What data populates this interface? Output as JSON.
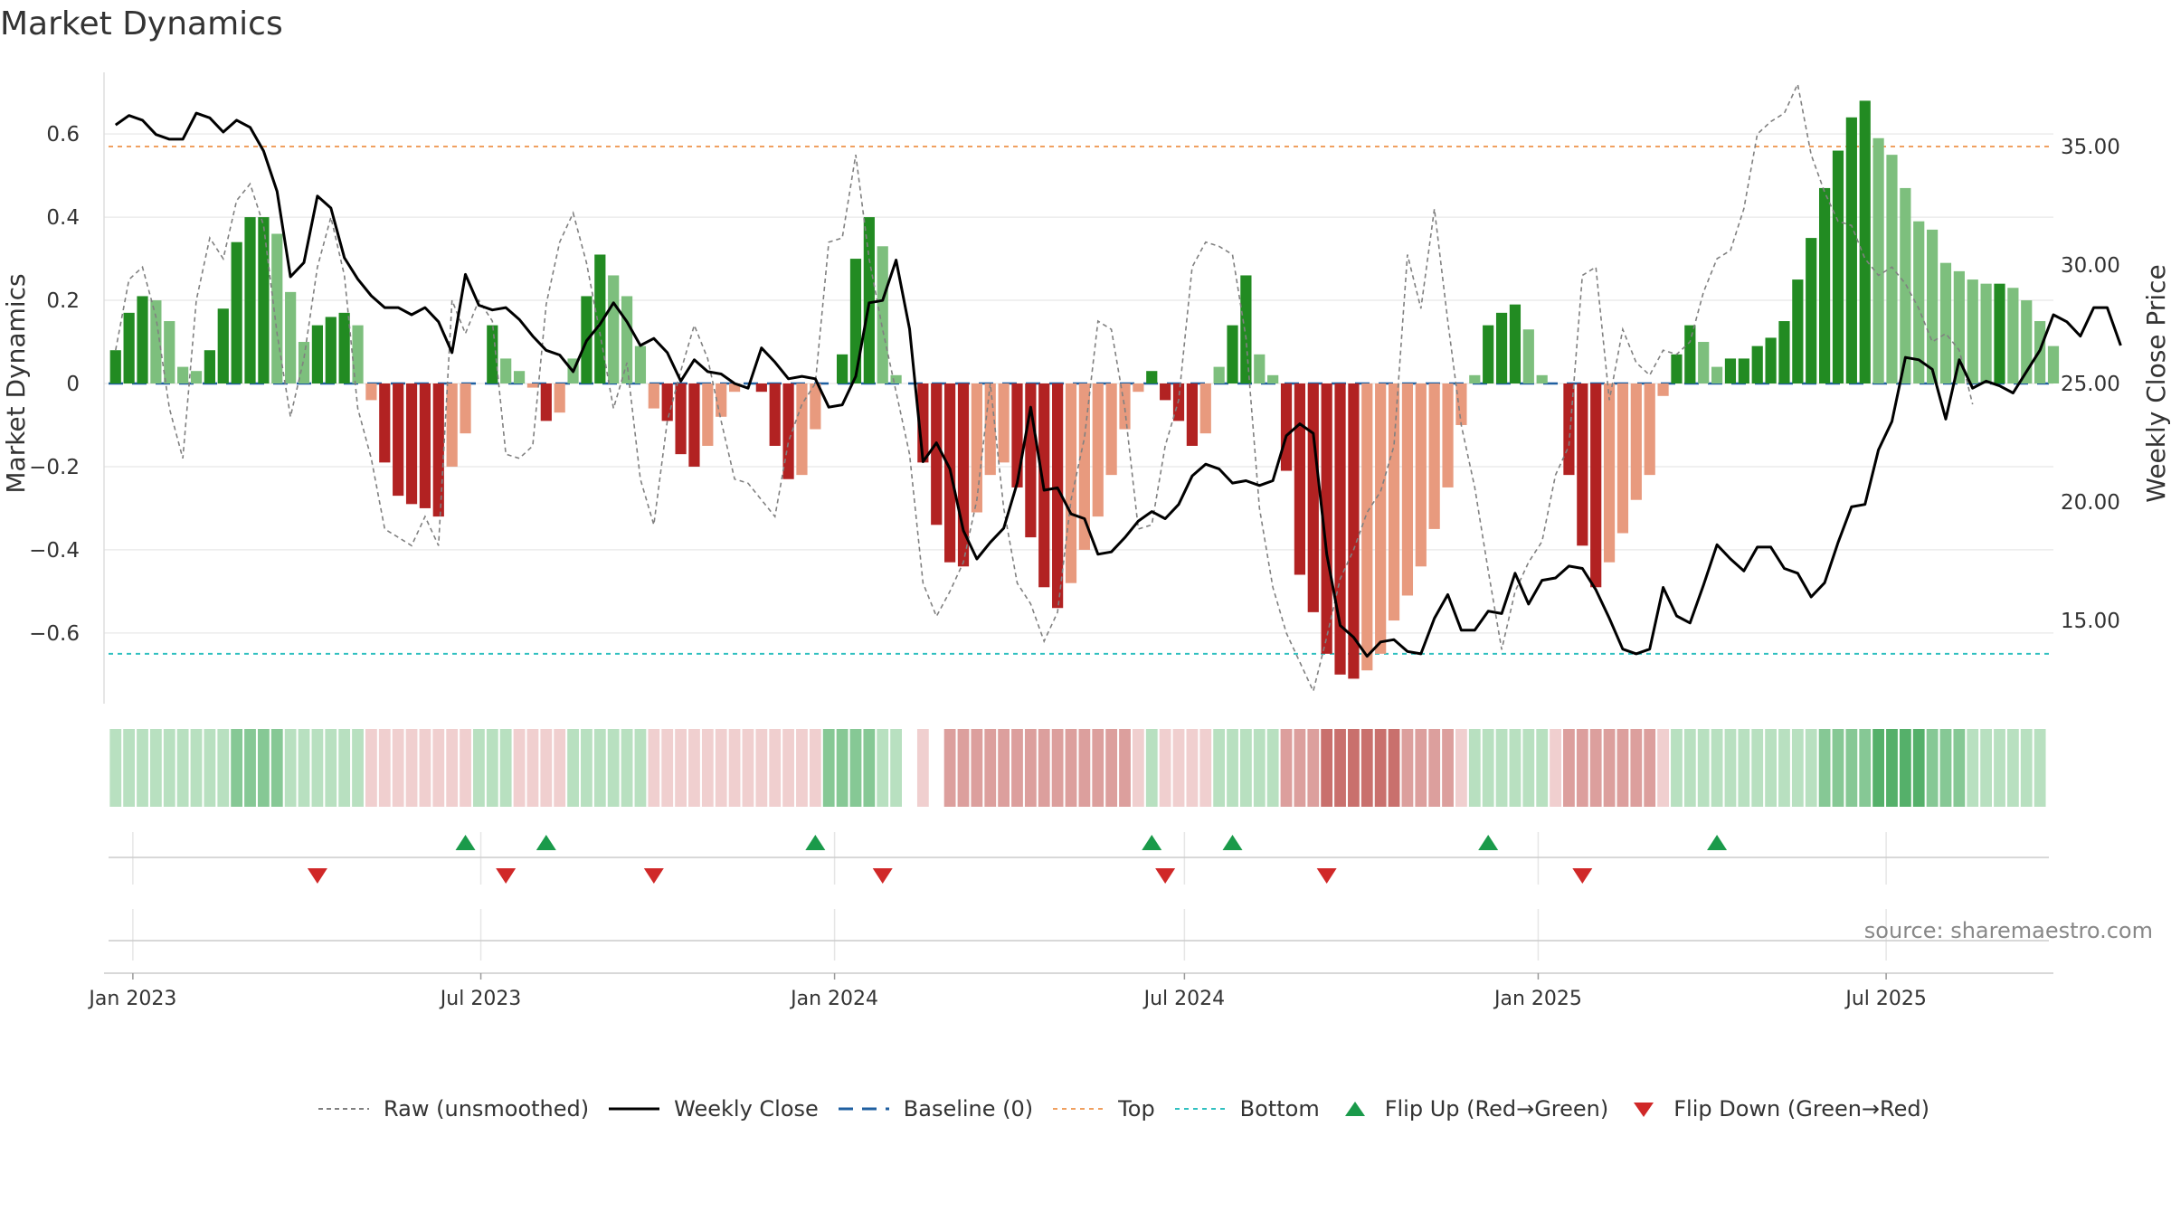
{
  "title": "Market Dynamics",
  "source": "source: sharemaestro.com",
  "colors": {
    "strong_green": "#228B22",
    "light_green": "#7DBF7D",
    "strong_red": "#B22222",
    "light_red": "#E89A7E",
    "close_line": "#000000",
    "raw_line": "#808080",
    "baseline": "#1f5fa0",
    "top": "#f0a060",
    "bottom": "#30c0c0",
    "flip_up": "#1a9a4a",
    "flip_down": "#d02828"
  },
  "legend": [
    {
      "key": "raw",
      "label": "Raw (unsmoothed)"
    },
    {
      "key": "close",
      "label": "Weekly Close"
    },
    {
      "key": "baseline",
      "label": "Baseline (0)"
    },
    {
      "key": "top",
      "label": "Top"
    },
    {
      "key": "bottom",
      "label": "Bottom"
    },
    {
      "key": "flip_up",
      "label": "Flip Up (Red→Green)"
    },
    {
      "key": "flip_down",
      "label": "Flip Down (Green→Red)"
    }
  ],
  "chart_data": {
    "type": "bar",
    "title": "Market Dynamics",
    "ylabel": "Market Dynamics",
    "y2label": "Weekly Close Price",
    "ylim": [
      -0.77,
      0.77
    ],
    "y2lim": [
      11.5,
      38.5
    ],
    "y_ticks": [
      0.6,
      0.4,
      0.2,
      0,
      -0.2,
      -0.4,
      -0.6
    ],
    "y_tick_labels": [
      "0.6",
      "0.4",
      "0.2",
      "0",
      "−0.2",
      "−0.4",
      "−0.6"
    ],
    "y2_ticks": [
      35,
      30,
      25,
      20,
      15
    ],
    "y2_tick_labels": [
      "35.00",
      "30.00",
      "25.00",
      "20.00",
      "15.00"
    ],
    "x_ticks": [
      "2023-01-01",
      "2023-07-01",
      "2024-01-01",
      "2024-07-01",
      "2025-01-01",
      "2025-07-01"
    ],
    "x_tick_labels": [
      "Jan 2023",
      "Jul 2023",
      "Jan 2024",
      "Jul 2024",
      "Jan 2025",
      "Jul 2025"
    ],
    "x_range": [
      "2022-12-17",
      "2025-09-26"
    ],
    "first_week": "2022-12-23",
    "week_step_days": 7,
    "top_level": 0.57,
    "bottom_level": -0.65,
    "grid": true,
    "legend_position": "bottom",
    "series": [
      {
        "name": "Market Dynamics",
        "kind": "bars",
        "values": [
          0.08,
          0.17,
          0.21,
          0.2,
          0.15,
          0.04,
          0.03,
          0.08,
          0.18,
          0.34,
          0.4,
          0.4,
          0.36,
          0.22,
          0.1,
          0.14,
          0.16,
          0.17,
          0.14,
          -0.04,
          -0.19,
          -0.27,
          -0.29,
          -0.3,
          -0.32,
          -0.2,
          -0.12,
          0.0,
          0.14,
          0.06,
          0.03,
          -0.01,
          -0.09,
          -0.07,
          0.06,
          0.21,
          0.31,
          0.26,
          0.21,
          0.09,
          -0.06,
          -0.09,
          -0.17,
          -0.2,
          -0.15,
          -0.08,
          -0.02,
          0.0,
          -0.02,
          -0.15,
          -0.23,
          -0.22,
          -0.11,
          0.0,
          0.07,
          0.3,
          0.4,
          0.33,
          0.02,
          0.0,
          -0.19,
          -0.34,
          -0.43,
          -0.44,
          -0.31,
          -0.22,
          -0.19,
          -0.25,
          -0.37,
          -0.49,
          -0.54,
          -0.48,
          -0.4,
          -0.32,
          -0.22,
          -0.11,
          -0.02,
          0.03,
          -0.04,
          -0.09,
          -0.15,
          -0.12,
          0.04,
          0.14,
          0.26,
          0.07,
          0.02,
          -0.21,
          -0.46,
          -0.55,
          -0.65,
          -0.7,
          -0.71,
          -0.69,
          -0.65,
          -0.57,
          -0.51,
          -0.44,
          -0.35,
          -0.25,
          -0.1,
          0.02,
          0.14,
          0.17,
          0.19,
          0.13,
          0.02,
          0.0,
          -0.22,
          -0.39,
          -0.49,
          -0.43,
          -0.36,
          -0.28,
          -0.22,
          -0.03,
          0.07,
          0.14,
          0.1,
          0.04,
          0.06,
          0.06,
          0.09,
          0.11,
          0.15,
          0.25,
          0.35,
          0.47,
          0.56,
          0.64,
          0.68,
          0.59,
          0.55,
          0.47,
          0.39,
          0.37,
          0.29,
          0.27,
          0.25,
          0.24,
          0.24,
          0.23,
          0.2,
          0.15,
          0.09
        ]
      },
      {
        "name": "Raw (unsmoothed)",
        "kind": "dashed-line",
        "values": [
          0.08,
          0.25,
          0.28,
          0.16,
          -0.06,
          -0.18,
          0.2,
          0.35,
          0.3,
          0.44,
          0.48,
          0.38,
          0.12,
          -0.08,
          0.06,
          0.28,
          0.4,
          0.26,
          -0.06,
          -0.18,
          -0.35,
          -0.37,
          -0.39,
          -0.32,
          -0.39,
          0.2,
          0.12,
          0.2,
          0.15,
          -0.17,
          -0.18,
          -0.15,
          0.19,
          0.34,
          0.41,
          0.29,
          0.12,
          -0.06,
          0.05,
          -0.23,
          -0.34,
          -0.09,
          0.03,
          0.14,
          0.06,
          -0.09,
          -0.23,
          -0.24,
          -0.28,
          -0.32,
          -0.14,
          -0.05,
          0.0,
          0.34,
          0.35,
          0.55,
          0.3,
          0.13,
          -0.02,
          -0.17,
          -0.48,
          -0.56,
          -0.5,
          -0.43,
          -0.28,
          0.0,
          -0.3,
          -0.48,
          -0.53,
          -0.62,
          -0.55,
          -0.28,
          -0.13,
          0.15,
          0.13,
          -0.06,
          -0.35,
          -0.34,
          -0.15,
          -0.04,
          0.28,
          0.34,
          0.33,
          0.31,
          0.11,
          -0.3,
          -0.49,
          -0.6,
          -0.67,
          -0.74,
          -0.61,
          -0.47,
          -0.4,
          -0.31,
          -0.26,
          -0.15,
          0.31,
          0.18,
          0.42,
          0.15,
          -0.1,
          -0.25,
          -0.45,
          -0.64,
          -0.5,
          -0.43,
          -0.38,
          -0.22,
          -0.15,
          0.26,
          0.28,
          -0.04,
          0.13,
          0.05,
          0.02,
          0.08,
          0.07,
          0.1,
          0.22,
          0.3,
          0.32,
          0.42,
          0.6,
          0.63,
          0.65,
          0.72,
          0.55,
          0.46,
          0.39,
          0.38,
          0.3,
          0.26,
          0.28,
          0.24,
          0.18,
          0.1,
          0.12,
          0.08,
          -0.05
        ]
      },
      {
        "name": "Weekly Close",
        "kind": "line",
        "values": [
          35.9,
          36.3,
          36.1,
          35.5,
          35.3,
          35.3,
          36.4,
          36.2,
          35.6,
          36.1,
          35.8,
          34.8,
          33.1,
          29.5,
          30.1,
          32.9,
          32.4,
          30.3,
          29.4,
          28.7,
          28.2,
          28.2,
          27.9,
          28.2,
          27.6,
          26.3,
          29.6,
          28.3,
          28.1,
          28.2,
          27.7,
          27.0,
          26.4,
          26.2,
          25.5,
          26.8,
          27.5,
          28.4,
          27.6,
          26.6,
          26.9,
          26.3,
          25.1,
          26.0,
          25.5,
          25.4,
          25.0,
          24.8,
          26.5,
          25.9,
          25.2,
          25.3,
          25.2,
          24.0,
          24.1,
          25.3,
          28.4,
          28.5,
          30.2,
          27.3,
          21.7,
          22.5,
          21.4,
          18.8,
          17.6,
          18.3,
          18.9,
          20.8,
          24.0,
          20.5,
          20.6,
          19.5,
          19.3,
          17.8,
          17.9,
          18.5,
          19.2,
          19.6,
          19.3,
          19.9,
          21.1,
          21.6,
          21.4,
          20.8,
          20.9,
          20.7,
          20.9,
          22.8,
          23.3,
          22.9,
          17.8,
          14.8,
          14.3,
          13.5,
          14.1,
          14.2,
          13.7,
          13.6,
          15.1,
          16.1,
          14.6,
          14.6,
          15.4,
          15.3,
          17.0,
          15.7,
          16.7,
          16.8,
          17.3,
          17.2,
          16.3,
          15.1,
          13.8,
          13.6,
          13.8,
          16.4,
          15.2,
          14.9,
          16.5,
          18.2,
          17.6,
          17.1,
          18.1,
          18.1,
          17.2,
          17.0,
          16.0,
          16.6,
          18.3,
          19.8,
          19.9,
          22.2,
          23.4,
          26.1,
          26.0,
          25.6,
          23.5,
          26.0,
          24.8,
          25.1,
          24.9,
          24.6,
          25.5,
          26.4,
          27.9,
          27.6,
          27.0,
          28.2,
          28.2,
          26.6
        ]
      }
    ],
    "regime_strip": {
      "levels": [
        1,
        1,
        1,
        1,
        1,
        1,
        1,
        1,
        1,
        2,
        2,
        2,
        2,
        1,
        1,
        1,
        1,
        1,
        1,
        -1,
        -1,
        -1,
        -1,
        -1,
        -1,
        -1,
        -1,
        1,
        1,
        1,
        -1,
        -1,
        -1,
        -1,
        1,
        1,
        1,
        1,
        1,
        1,
        -1,
        -1,
        -1,
        -1,
        -1,
        -1,
        -1,
        -1,
        -1,
        -1,
        -1,
        -1,
        -1,
        2,
        2,
        2,
        2,
        1,
        1,
        0,
        -1,
        0,
        -2,
        -2,
        -2,
        -2,
        -2,
        -2,
        -2,
        -2,
        -2,
        -2,
        -2,
        -2,
        -2,
        -2,
        -1,
        1,
        -1,
        -1,
        -1,
        -1,
        1,
        1,
        1,
        1,
        1,
        -2,
        -2,
        -2,
        -3,
        -3,
        -3,
        -3,
        -3,
        -3,
        -2,
        -2,
        -2,
        -2,
        -1,
        1,
        1,
        1,
        1,
        1,
        1,
        -1,
        -2,
        -2,
        -2,
        -2,
        -2,
        -2,
        -2,
        -1,
        1,
        1,
        1,
        1,
        1,
        1,
        1,
        1,
        1,
        1,
        1,
        2,
        2,
        2,
        2,
        3,
        3,
        3,
        3,
        2,
        2,
        2,
        1,
        1,
        1,
        1,
        1,
        1,
        1,
        1,
        1,
        1,
        1
      ]
    },
    "flip_up_dates": [
      "2023-06-23",
      "2023-08-04",
      "2023-12-22",
      "2024-06-14",
      "2024-07-26",
      "2024-12-06",
      "2025-04-04"
    ],
    "flip_down_dates": [
      "2023-04-07",
      "2023-07-14",
      "2023-09-29",
      "2024-01-26",
      "2024-06-21",
      "2024-09-13",
      "2025-01-24"
    ]
  }
}
